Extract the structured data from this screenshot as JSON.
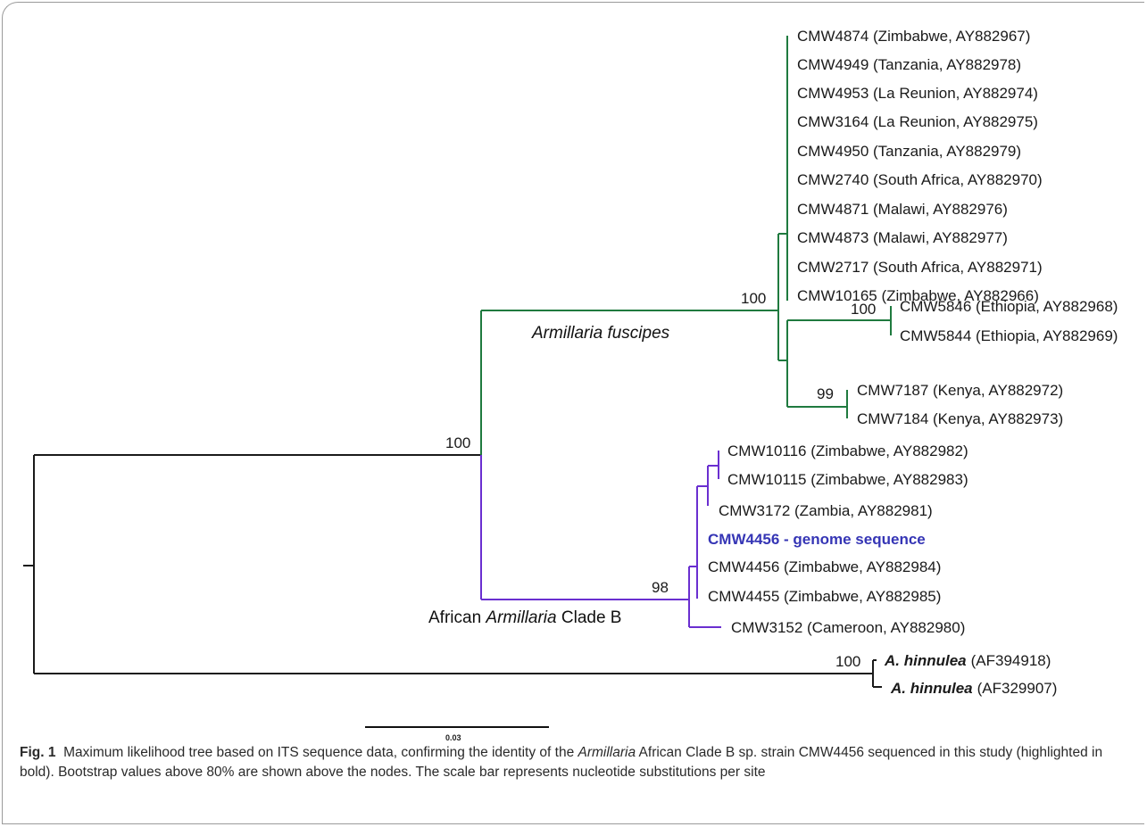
{
  "colors": {
    "root": "#1a1a1a",
    "fuscipes": "#1f7a3f",
    "cladeB": "#6a2fd0",
    "highlight": "#3535b5"
  },
  "leaves": [
    {
      "id": "l1",
      "label": "CMW4874 (Zimbabwe, AY882967)"
    },
    {
      "id": "l2",
      "label": "CMW4949 (Tanzania, AY882978)"
    },
    {
      "id": "l3",
      "label": "CMW4953 (La Reunion, AY882974)"
    },
    {
      "id": "l4",
      "label": "CMW3164 (La Reunion, AY882975)"
    },
    {
      "id": "l5",
      "label": "CMW4950 (Tanzania, AY882979)"
    },
    {
      "id": "l6",
      "label": "CMW2740 (South Africa, AY882970)"
    },
    {
      "id": "l7",
      "label": "CMW4871 (Malawi, AY882976)"
    },
    {
      "id": "l8",
      "label": "CMW4873 (Malawi, AY882977)"
    },
    {
      "id": "l9",
      "label": "CMW2717 (South Africa, AY882971)"
    },
    {
      "id": "l10",
      "label": "CMW10165 (Zimbabwe, AY882966)"
    },
    {
      "id": "l11",
      "label": "CMW5846 (Ethiopia, AY882968)"
    },
    {
      "id": "l12",
      "label": "CMW5844 (Ethiopia, AY882969)"
    },
    {
      "id": "l13",
      "label": "CMW7187 (Kenya, AY882972)"
    },
    {
      "id": "l14",
      "label": "CMW7184 (Kenya, AY882973)"
    },
    {
      "id": "l15",
      "label": "CMW10116 (Zimbabwe, AY882982)"
    },
    {
      "id": "l16",
      "label": "CMW10115 (Zimbabwe, AY882983)"
    },
    {
      "id": "l17",
      "label": "CMW3172 (Zambia, AY882981)"
    },
    {
      "id": "l18",
      "label": "CMW4456 - genome sequence"
    },
    {
      "id": "l19",
      "label": "CMW4456 (Zimbabwe, AY882984)"
    },
    {
      "id": "l20",
      "label": "CMW4455 (Zimbabwe, AY882985)"
    },
    {
      "id": "l21",
      "label": "CMW3152 (Cameroon, AY882980)"
    },
    {
      "id": "l22",
      "species": "A. hinnulea",
      "accession": "(AF394918)"
    },
    {
      "id": "l23",
      "species": "A. hinnulea",
      "accession": "(AF329907)"
    }
  ],
  "bootstrap": {
    "b_root_clade": "100",
    "b_fuscipes": "100",
    "b_ethiopia": "100",
    "b_kenya": "99",
    "b_cladeB": "98",
    "b_hinnulea": "100"
  },
  "clades": {
    "fuscipes": "Armillaria fuscipes",
    "cladeB_prefix": "African ",
    "cladeB_genus": "Armillaria",
    "cladeB_suffix": " Clade B"
  },
  "scale_bar": {
    "label": "0.03"
  },
  "caption": {
    "fig_label": "Fig. 1",
    "text_1": "  Maximum likelihood tree based on ITS sequence data, confirming the identity of the ",
    "genus": "Armillaria",
    "text_2": " African Clade B sp. strain CMW4456 sequenced in this study (highlighted in bold). Bootstrap values above 80% are shown above the nodes. The scale bar represents nucleotide substitutions per site"
  }
}
